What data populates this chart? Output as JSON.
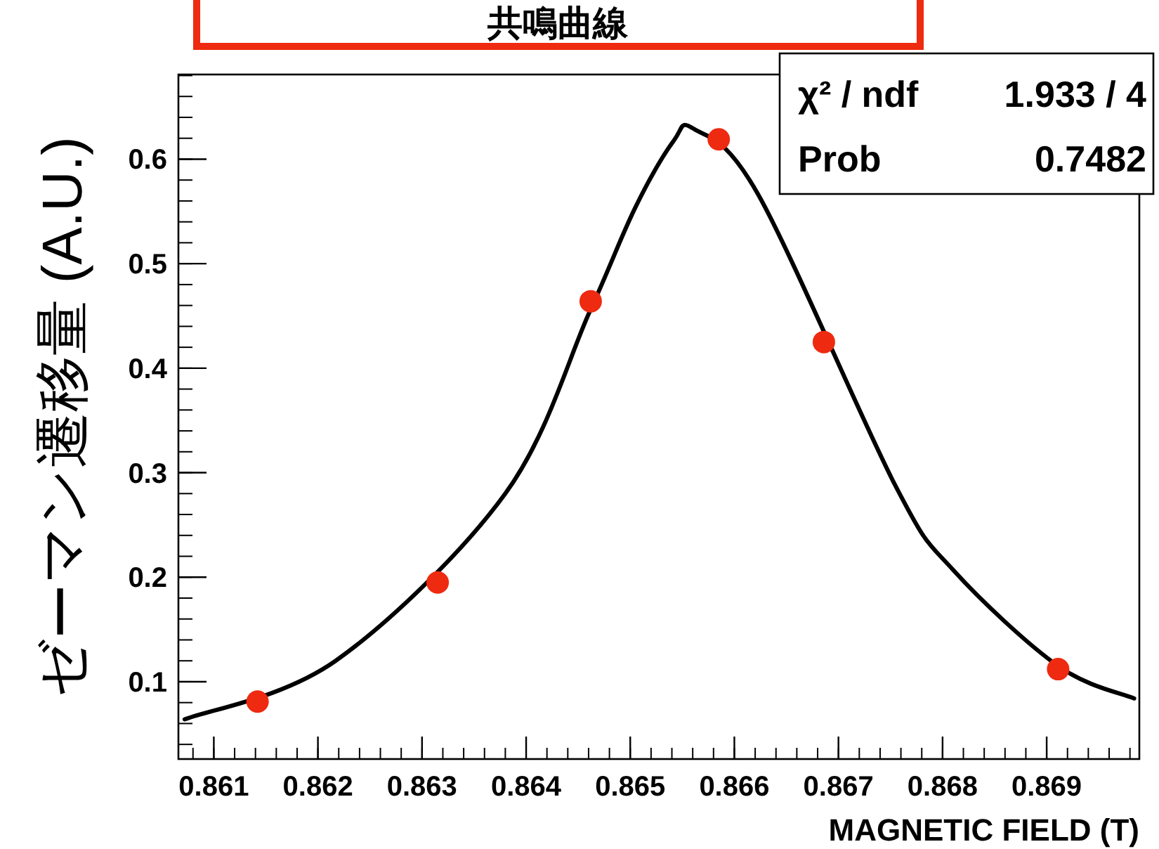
{
  "chart_data": {
    "type": "scatter",
    "title": "共鳴曲線",
    "xlabel": "MAGNETIC FIELD (T)",
    "ylabel": "ゼーマン遷移量 (A.U.)",
    "xlim": [
      0.86066,
      0.86989
    ],
    "ylim": [
      0.026,
      0.681
    ],
    "xticks": [
      0.861,
      0.862,
      0.863,
      0.864,
      0.865,
      0.866,
      0.867,
      0.868,
      0.869
    ],
    "yticks": [
      0.1,
      0.2,
      0.3,
      0.4,
      0.5,
      0.6
    ],
    "grid": false,
    "annotations": [
      "χ² / ndf  1.933 / 4",
      "Prob  0.7482"
    ],
    "series": [
      {
        "type": "line",
        "color": "#000000",
        "line_style": "solid",
        "x": [
          0.86072,
          0.86217,
          0.8638,
          0.86461,
          0.86505,
          0.86542,
          0.86561,
          0.86623,
          0.86755,
          0.86811,
          0.86911,
          0.86984
        ],
        "values": [
          0.064,
          0.12,
          0.28,
          0.454,
          0.554,
          0.618,
          0.629,
          0.566,
          0.287,
          0.206,
          0.115,
          0.084
        ]
      },
      {
        "color": "#ee2a10",
        "marker": "circle",
        "x": [
          0.86142,
          0.86315,
          0.86462,
          0.86585,
          0.86686,
          0.86911
        ],
        "values": [
          0.081,
          0.195,
          0.464,
          0.619,
          0.425,
          0.112
        ]
      }
    ]
  }
}
